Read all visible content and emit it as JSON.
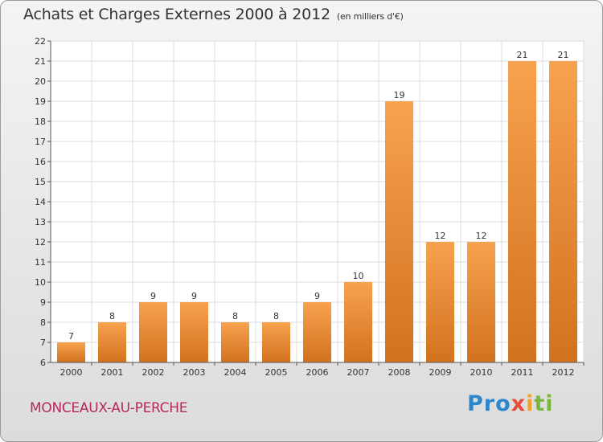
{
  "title": "Achats et Charges Externes 2000 à 2012",
  "subtitle": "(en milliers d'€)",
  "commune": "MONCEAUX-AU-PERCHE",
  "logo": {
    "text": "Proxiti",
    "parts": [
      "Pro",
      "x",
      "i",
      "ti"
    ]
  },
  "colors": {
    "bar_top": "#f7a24f",
    "bar_bottom": "#d2721e",
    "commune": "#b8285e"
  },
  "chart_data": {
    "type": "bar",
    "title": "Achats et Charges Externes 2000 à 2012",
    "subtitle": "(en milliers d'€)",
    "categories": [
      "2000",
      "2001",
      "2002",
      "2003",
      "2004",
      "2005",
      "2006",
      "2007",
      "2008",
      "2009",
      "2010",
      "2011",
      "2012"
    ],
    "values": [
      7,
      8,
      9,
      9,
      8,
      8,
      9,
      10,
      19,
      12,
      12,
      21,
      21
    ],
    "ylim": [
      6,
      22
    ],
    "yticks": [
      6,
      7,
      8,
      9,
      10,
      11,
      12,
      13,
      14,
      15,
      16,
      17,
      18,
      19,
      20,
      21,
      22
    ],
    "grid": true,
    "xlabel": "",
    "ylabel": ""
  }
}
